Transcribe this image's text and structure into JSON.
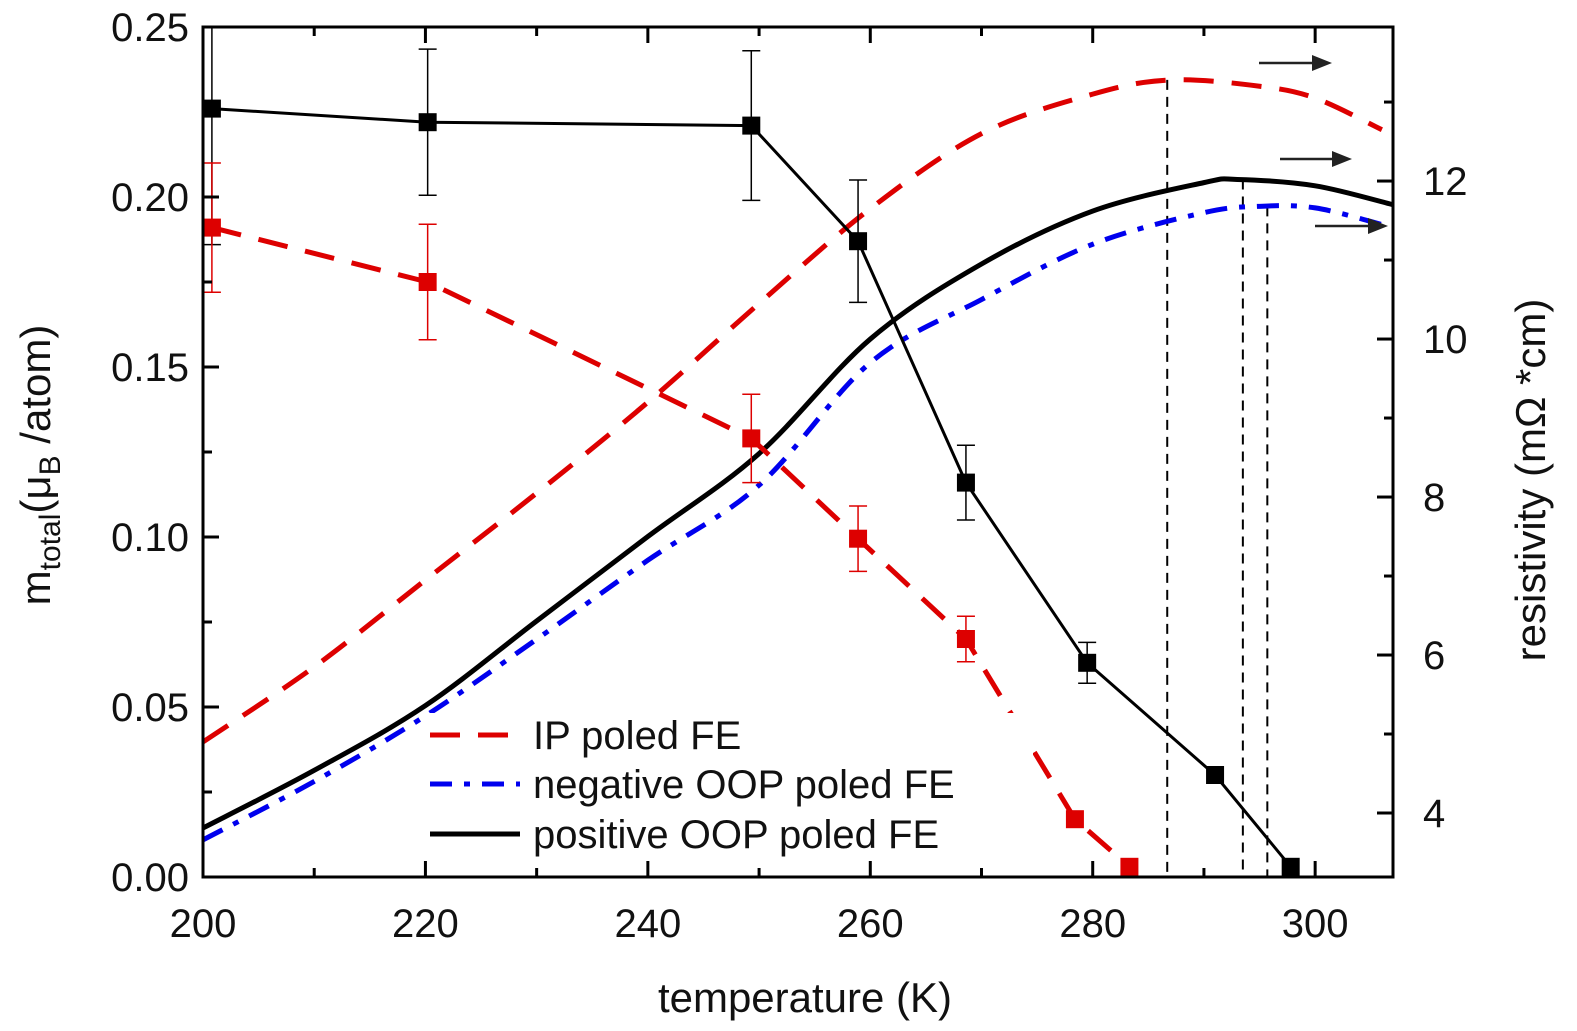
{
  "chart_data": {
    "type": "line",
    "xlabel": "temperature (K)",
    "ylabel_left": {
      "main": "m",
      "sub": "total",
      "open": "(μ",
      "sub2": "B",
      "close": " /atom)"
    },
    "ylabel_right": "resistivity (mΩ *cm)",
    "xlim": [
      200,
      307
    ],
    "ylim_left": [
      0,
      0.25
    ],
    "ylim_right": [
      3.19,
      13.95
    ],
    "x_ticks": [
      200,
      220,
      240,
      260,
      280,
      300
    ],
    "x_tick_labels": [
      "200",
      "220",
      "240",
      "260",
      "280",
      "300"
    ],
    "y_left_ticks": [
      0,
      0.05,
      0.1,
      0.15,
      0.2,
      0.25
    ],
    "y_left_tick_labels": [
      "0.00",
      "0.05",
      "0.10",
      "0.15",
      "0.20",
      "0.25"
    ],
    "y_right_ticks": [
      4,
      6,
      8,
      10,
      12
    ],
    "y_right_tick_labels": [
      "4",
      "6",
      "8",
      "10",
      "12"
    ],
    "grid": false,
    "legend_placement": "bottom-center",
    "magnetization_series": [
      {
        "color": "#000000",
        "style": "solid",
        "marker": "square",
        "x": [
          200.8,
          220.2,
          249.3,
          258.9,
          268.6,
          279.5,
          291.0,
          297.8
        ],
        "y": [
          0.226,
          0.222,
          0.221,
          0.187,
          0.116,
          0.063,
          0.03,
          0.003
        ],
        "err": [
          0.04,
          0.0215,
          0.022,
          0.018,
          0.011,
          0.006,
          0,
          0
        ]
      },
      {
        "color": "#dd0000",
        "style": "dashed",
        "marker": "square",
        "x": [
          200.8,
          220.2,
          249.3,
          258.9,
          268.6,
          278.4,
          283.3
        ],
        "y": [
          0.191,
          0.175,
          0.129,
          0.0995,
          0.07,
          0.017,
          0.003
        ],
        "err": [
          0.019,
          0.017,
          0.013,
          0.0096,
          0.0067,
          0,
          0
        ]
      }
    ],
    "resistivity_series": [
      {
        "name": "IP poled FE",
        "color": "#dd0000",
        "style": "dashed",
        "x": [
          200,
          210,
          220,
          230,
          240,
          250,
          260,
          270,
          280,
          287,
          295,
          300,
          306
        ],
        "y": [
          4.9,
          5.85,
          6.95,
          8.05,
          9.2,
          10.45,
          11.65,
          12.6,
          13.1,
          13.28,
          13.2,
          13.05,
          12.65
        ]
      },
      {
        "name": "negative OOP poled FE",
        "color": "#0000ee",
        "style": "dashdot",
        "x": [
          200,
          210,
          220,
          230,
          240,
          250,
          260,
          270,
          280,
          290,
          295,
          300,
          306
        ],
        "y": [
          3.66,
          4.4,
          5.23,
          6.2,
          7.2,
          8.15,
          9.7,
          10.5,
          11.2,
          11.6,
          11.68,
          11.66,
          11.45
        ]
      },
      {
        "name": "positive OOP poled FE",
        "color": "#000000",
        "style": "solid",
        "x": [
          200,
          210,
          220,
          230,
          240,
          250,
          260,
          270,
          280,
          290,
          293,
          300,
          307
        ],
        "y": [
          3.81,
          4.54,
          5.36,
          6.43,
          7.5,
          8.55,
          10.0,
          10.95,
          11.62,
          11.98,
          12.02,
          11.94,
          11.7
        ]
      }
    ],
    "vertical_markers": [
      {
        "x": 286.7,
        "to_series": "IP poled FE",
        "y": 13.28
      },
      {
        "x": 293.5,
        "to_series": "positive OOP poled FE",
        "y": 12.02
      },
      {
        "x": 295.7,
        "to_series": "negative OOP poled FE",
        "y": 11.68
      }
    ],
    "annotations": [
      {
        "type": "arrow-right",
        "points_to": "right axis",
        "series": "IP poled FE"
      },
      {
        "type": "arrow-right",
        "points_to": "right axis",
        "series": "positive OOP poled FE"
      },
      {
        "type": "arrow-right",
        "points_to": "right axis",
        "series": "negative OOP poled FE"
      }
    ]
  }
}
